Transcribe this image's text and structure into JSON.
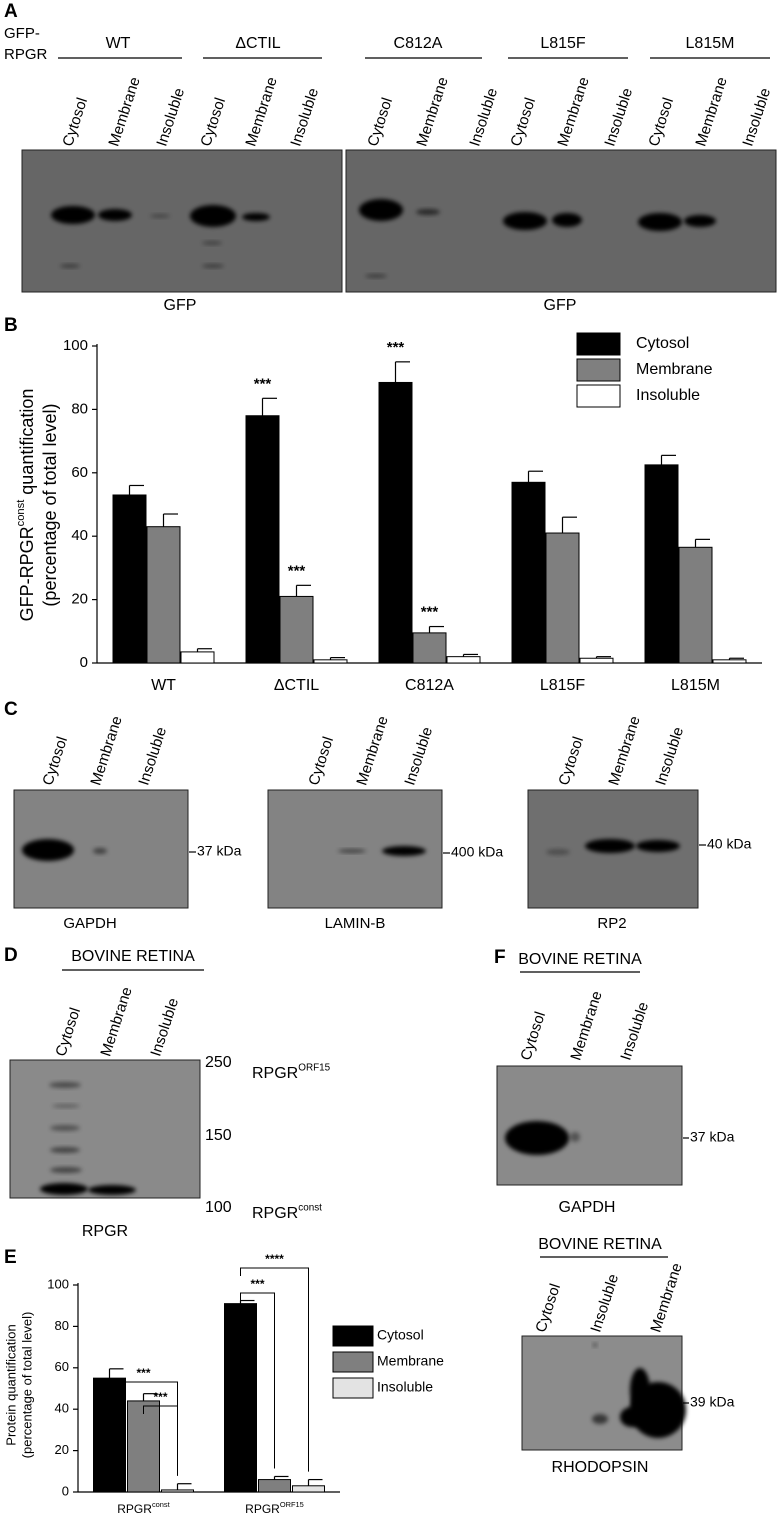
{
  "panel_labels": [
    "A",
    "B",
    "C",
    "D",
    "E",
    "F"
  ],
  "panel_a": {
    "row_label": [
      "GFP-",
      "RPGR"
    ],
    "groups": [
      "WT",
      "ΔCTIL",
      "C812A",
      "L815F",
      "L815M"
    ],
    "lanes": [
      "Cytosol",
      "Membrane",
      "Insoluble"
    ],
    "captions": [
      "GFP",
      "GFP"
    ]
  },
  "chart_data": [
    {
      "type": "bar",
      "ylabel": {
        "text": "GFP-RPGR",
        "sup": "const",
        "rest": " quantification",
        "line2": "(percentage of total level)"
      },
      "categories": [
        "WT",
        "ΔCTIL",
        "C812A",
        "L815F",
        "L815M"
      ],
      "series": [
        {
          "name": "Cytosol",
          "color": "#000000",
          "values": [
            53,
            78,
            88.5,
            57,
            62.5
          ],
          "errors": [
            3,
            5.5,
            6.5,
            3.5,
            3
          ],
          "significance": [
            null,
            "***",
            "***",
            null,
            null
          ]
        },
        {
          "name": "Membrane",
          "color": "#7f7f7f",
          "values": [
            43,
            21,
            9.5,
            41,
            36.5
          ],
          "errors": [
            4,
            3.5,
            2,
            5,
            2.5
          ],
          "significance": [
            null,
            "***",
            "***",
            null,
            null
          ]
        },
        {
          "name": "Insoluble",
          "color": "#ffffff",
          "values": [
            3.5,
            1,
            2,
            1.5,
            1
          ],
          "errors": [
            1,
            0.7,
            0.7,
            0.5,
            0.5
          ],
          "significance": [
            null,
            null,
            null,
            null,
            null
          ]
        }
      ],
      "ylim": [
        0,
        100
      ],
      "yticks": [
        0,
        20,
        40,
        60,
        80,
        100
      ],
      "legend": "upper right"
    },
    {
      "type": "bar",
      "ylabel": {
        "text": "Protein quantification",
        "line2": "(percentage of total level)"
      },
      "categories": [
        "RPGR",
        "RPGR"
      ],
      "category_sups": [
        "const",
        "ORF15"
      ],
      "series": [
        {
          "name": "Cytosol",
          "color": "#000000",
          "values": [
            55,
            91
          ],
          "errors": [
            4.5,
            1.5
          ]
        },
        {
          "name": "Membrane",
          "color": "#7f7f7f",
          "values": [
            44,
            6
          ],
          "errors": [
            3.5,
            1.5
          ]
        },
        {
          "name": "Insoluble",
          "color": "#e3e3e3",
          "values": [
            1,
            3
          ],
          "errors": [
            3,
            3
          ]
        }
      ],
      "ylim": [
        0,
        100
      ],
      "yticks": [
        0,
        20,
        40,
        60,
        80,
        100
      ],
      "legend": "upper right",
      "brackets": [
        {
          "text": "***",
          "category": 0,
          "from_series": 0,
          "to_series": 2
        },
        {
          "text": "***",
          "category": 0,
          "from_series": 1,
          "to_series": 2
        },
        {
          "text": "***",
          "category": 1,
          "from_series": 0,
          "to_series": 1
        },
        {
          "text": "****",
          "category": 1,
          "from_series": 0,
          "to_series": 2
        }
      ]
    }
  ],
  "panel_c": {
    "lanes": [
      "Cytosol",
      "Membrane",
      "Insoluble"
    ],
    "blots": [
      {
        "marker": "37 kDa",
        "caption": "GAPDH"
      },
      {
        "marker": "400 kDa",
        "caption": "LAMIN-B"
      },
      {
        "marker": "40 kDa",
        "caption": "RP2"
      }
    ]
  },
  "panel_d": {
    "header": "BOVINE RETINA",
    "lanes": [
      "Cytosol",
      "Membrane",
      "Insoluble"
    ],
    "markers": [
      250,
      150,
      100
    ],
    "bands": [
      {
        "name": "RPGR",
        "sup": "ORF15"
      },
      {
        "name": "RPGR",
        "sup": "const"
      }
    ],
    "caption": "RPGR"
  },
  "panel_f": {
    "blots": [
      {
        "header": "BOVINE RETINA",
        "lanes": [
          "Cytosol",
          "Membrane",
          "Insoluble"
        ],
        "marker": "37 kDa",
        "caption": "GAPDH"
      },
      {
        "header": "BOVINE RETINA",
        "lanes": [
          "Cytosol",
          "Insoluble",
          "Membrane"
        ],
        "marker": "39 kDa",
        "caption": "RHODOPSIN"
      }
    ]
  }
}
